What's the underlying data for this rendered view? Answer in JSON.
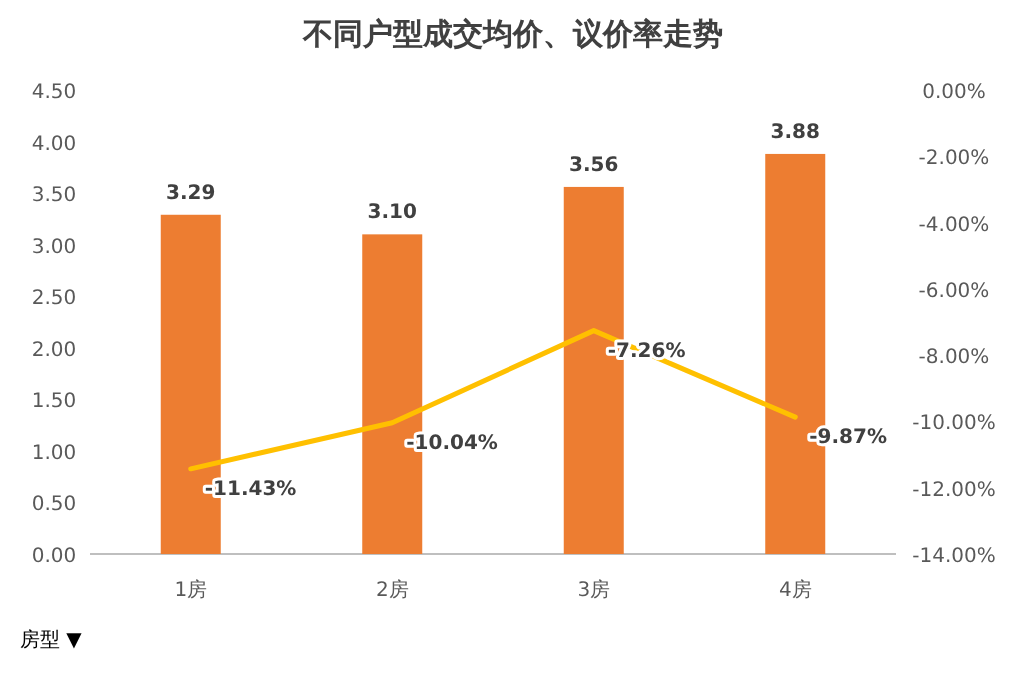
{
  "chart_data": {
    "type": "bar",
    "title": "不同户型成交均价、议价率走势",
    "categories": [
      "1房",
      "2房",
      "3房",
      "4房"
    ],
    "series": [
      {
        "color": "#ed7d31",
        "values": [
          3.29,
          3.1,
          3.56,
          3.88
        ],
        "value_labels": [
          "3.29",
          "3.10",
          "3.56",
          "3.88"
        ]
      },
      {
        "type": "line",
        "axis": "y2",
        "color": "#ffc000",
        "values": [
          -11.43,
          -10.04,
          -7.26,
          -9.87
        ],
        "value_labels": [
          "-11.43%",
          "-10.04%",
          "-7.26%",
          "-9.87%"
        ]
      }
    ],
    "ylim": [
      0,
      4.5
    ],
    "yticks": [
      {
        "value": 0,
        "label": "0.00"
      },
      {
        "value": 0.5,
        "label": "0.50"
      },
      {
        "value": 1,
        "label": "1.00"
      },
      {
        "value": 1.5,
        "label": "1.50"
      },
      {
        "value": 2,
        "label": "2.00"
      },
      {
        "value": 2.5,
        "label": "2.50"
      },
      {
        "value": 3,
        "label": "3.00"
      },
      {
        "value": 3.5,
        "label": "3.50"
      },
      {
        "value": 4,
        "label": "4.00"
      },
      {
        "value": 4.5,
        "label": "4.50"
      }
    ],
    "y2lim": [
      -14,
      0
    ],
    "y2ticks": [
      {
        "value": 0,
        "label": "0.00%"
      },
      {
        "value": -2,
        "label": "-2.00%"
      },
      {
        "value": -4,
        "label": "-4.00%"
      },
      {
        "value": -6,
        "label": "-6.00%"
      },
      {
        "value": -8,
        "label": "-8.00%"
      },
      {
        "value": -10,
        "label": "-10.00%"
      },
      {
        "value": -12,
        "label": "-12.00%"
      },
      {
        "value": -14,
        "label": "-14.00%"
      }
    ],
    "annotations": [
      "房型 ▼"
    ]
  }
}
